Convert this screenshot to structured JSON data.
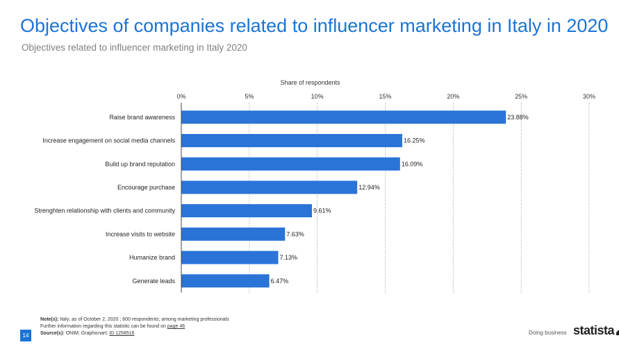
{
  "header": {
    "title": "Objectives of companies related to influencer marketing in Italy in 2020",
    "subtitle": "Objectives related to influencer marketing in Italy 2020"
  },
  "chart_data": {
    "type": "bar",
    "orientation": "horizontal",
    "axis_label": "Share of respondents",
    "xlim": [
      0,
      30
    ],
    "tick_values": [
      0,
      5,
      10,
      15,
      20,
      25,
      30
    ],
    "tick_labels": [
      "0%",
      "5%",
      "10%",
      "15%",
      "20%",
      "25%",
      "30%"
    ],
    "categories": [
      "Raise brand awareness",
      "Increase engagement on social media channels",
      "Build up brand reputation",
      "Encourage purchase",
      "Strenghten relationship with clients and community",
      "Increase visits to website",
      "Humanize brand",
      "Generate leads"
    ],
    "values": [
      23.88,
      16.25,
      16.09,
      12.94,
      9.61,
      7.63,
      7.13,
      6.47
    ],
    "value_labels": [
      "23.88%",
      "16.25%",
      "16.09%",
      "12.94%",
      "9.61%",
      "7.63%",
      "7.13%",
      "6.47%"
    ],
    "grid": "vertical dotted",
    "bar_color": "#2a74d8"
  },
  "footer": {
    "notes_label": "Note(s):",
    "notes_text": " Italy; as of October 2, 2020 ; 600 respondents; among marketing professionals",
    "further_info": "Further information regarding this statistic can be found on ",
    "page_link": "page 46",
    "source_label": "Source(s):",
    "source_text": " ONIM; Graphicnart; ",
    "id_link": "ID 1258516",
    "page_number": "14",
    "brand_tagline": "Doing business",
    "brand_name": "statista"
  }
}
